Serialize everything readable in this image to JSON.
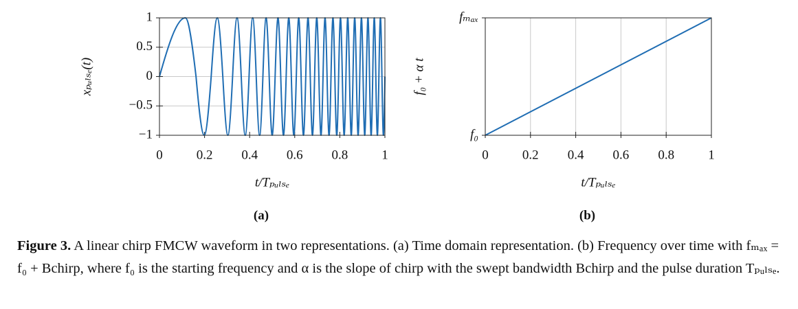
{
  "chart_data": [
    {
      "type": "line",
      "panel_label": "(a)",
      "xlabel": "t/Tₚᵤₗₛₑ",
      "ylabel": "xₚᵤₗₛₑ(t)",
      "x": [
        0,
        0.1147,
        0.1622,
        0.1987,
        0.2294,
        0.2565,
        0.281,
        0.3035,
        0.3244,
        0.3441,
        0.3627,
        0.3804,
        0.3974,
        0.4136,
        0.4292,
        0.4443,
        0.4588,
        0.473,
        0.4867,
        0.5,
        0.513,
        0.5257,
        0.538,
        0.5501,
        0.562,
        0.5735,
        0.5849,
        0.596,
        0.607,
        0.6177,
        0.6283,
        0.6387,
        0.6489,
        0.6589,
        0.6689,
        0.6786,
        0.6882,
        0.6977,
        0.7071,
        0.7164,
        0.7255,
        0.7345,
        0.7434,
        0.7522,
        0.7609,
        0.7695,
        0.778,
        0.7864,
        0.7947,
        0.8029,
        0.8111,
        0.8192,
        0.8272,
        0.8351,
        0.8429,
        0.8507,
        0.8584,
        0.866,
        0.8736,
        0.8811,
        0.8885,
        0.8959,
        0.9032,
        0.9105,
        0.9177,
        0.9248,
        0.9319,
        0.9389,
        0.9459,
        0.9528,
        0.9597,
        0.9666,
        0.9733,
        0.9801,
        0.9868,
        0.9934,
        1
      ],
      "values": [
        0,
        1,
        0,
        -1,
        0,
        1,
        0,
        -1,
        0,
        1,
        0,
        -1,
        0,
        1,
        0,
        -1,
        0,
        1,
        0,
        -1,
        0,
        1,
        0,
        -1,
        0,
        1,
        0,
        -1,
        0,
        1,
        0,
        -1,
        0,
        1,
        0,
        -1,
        0,
        1,
        0,
        -1,
        0,
        1,
        0,
        -1,
        0,
        1,
        0,
        -1,
        0,
        1,
        0,
        -1,
        0,
        1,
        0,
        -1,
        0,
        1,
        0,
        -1,
        0,
        1,
        0,
        -1,
        0,
        1,
        0,
        -1,
        0,
        1,
        0,
        -1,
        0,
        1,
        0,
        -1,
        0
      ],
      "color": "#1f6db3",
      "xlim": [
        0,
        1
      ],
      "ylim": [
        -1,
        1
      ],
      "xticks": [
        0,
        0.2,
        0.4,
        0.6,
        0.8,
        1
      ],
      "yticks": [
        {
          "value": -1,
          "label": "−1"
        },
        {
          "value": -0.5,
          "label": "−0.5"
        },
        0,
        0.5,
        1
      ],
      "grid": "y"
    },
    {
      "type": "line",
      "panel_label": "(b)",
      "xlabel": "t/Tₚᵤₗₛₑ",
      "ylabel": "f₀ + α t",
      "x": [
        0,
        1
      ],
      "values": [
        0,
        1
      ],
      "color": "#1f6db3",
      "xlim": [
        0,
        1
      ],
      "ylim": [
        0,
        1
      ],
      "xticks": [
        0,
        0.2,
        0.4,
        0.6,
        0.8,
        1
      ],
      "yticks": [
        {
          "value": 0,
          "label": "f₀"
        },
        {
          "value": 1,
          "label": "fₘₐₓ"
        }
      ],
      "grid": "x"
    }
  ],
  "caption": {
    "label": "Figure 3.",
    "text": "A linear chirp FMCW waveform in two representations. (a) Time domain representation. (b) Frequency over time with fₘₐₓ = f₀ + Bchirp, where f₀ is the starting frequency and α is the slope of chirp with the swept bandwidth Bchirp and the pulse duration Tₚᵤₗₛₑ."
  }
}
